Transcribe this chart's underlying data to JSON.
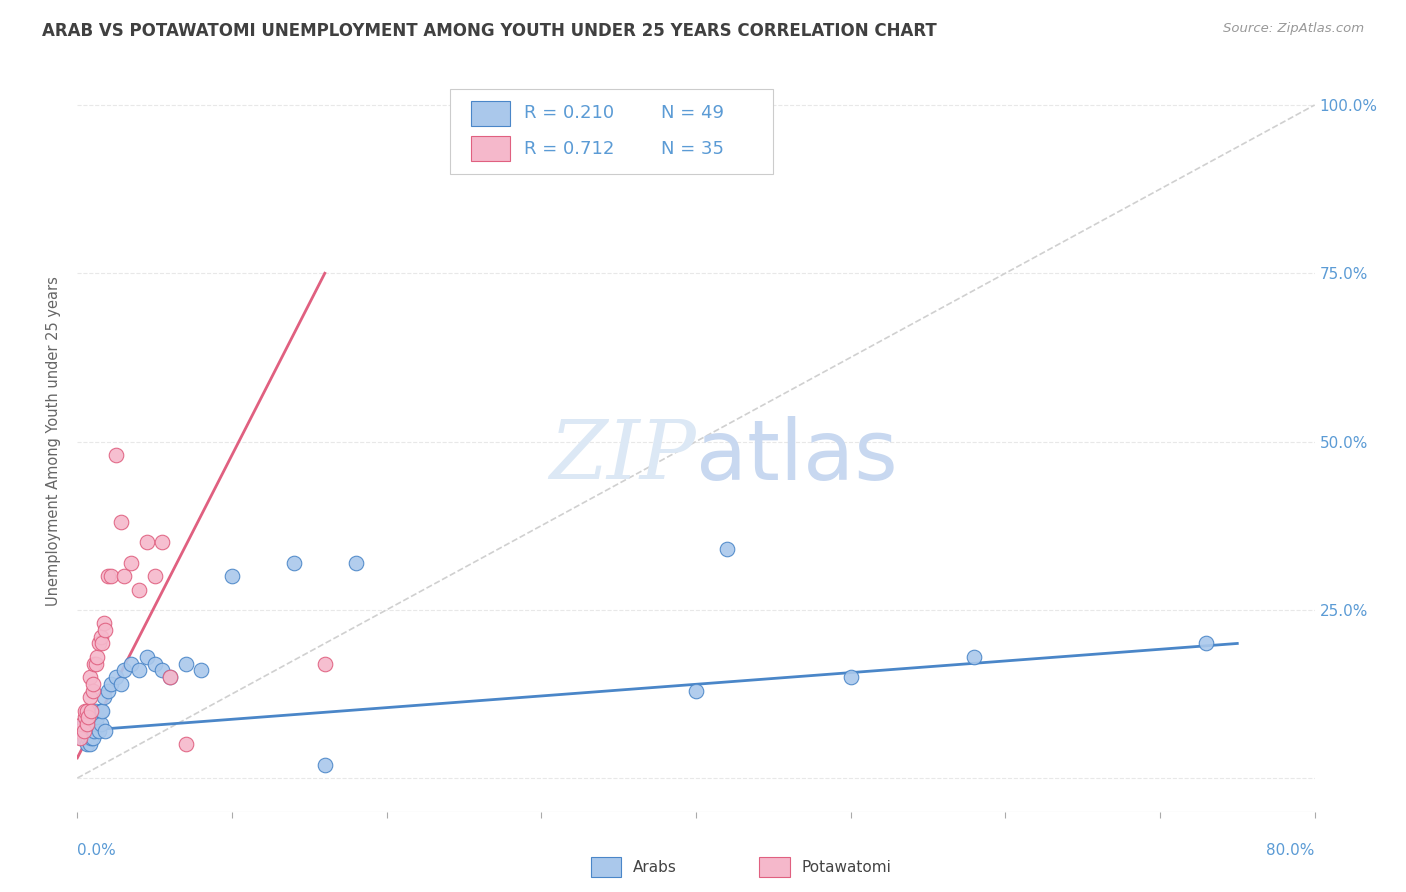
{
  "title": "ARAB VS POTAWATOMI UNEMPLOYMENT AMONG YOUTH UNDER 25 YEARS CORRELATION CHART",
  "source": "Source: ZipAtlas.com",
  "ylabel": "Unemployment Among Youth under 25 years",
  "arab_R": "0.210",
  "arab_N": "49",
  "potawatomi_R": "0.712",
  "potawatomi_N": "35",
  "arab_color": "#aac8eb",
  "potawatomi_color": "#f5b8cb",
  "arab_line_color": "#4a86c8",
  "potawatomi_line_color": "#e06080",
  "diagonal_color": "#d0d0d0",
  "background_color": "#ffffff",
  "grid_color": "#e8e8e8",
  "title_color": "#404040",
  "axis_label_color": "#5b9bd5",
  "watermark_color": "#dce8f5",
  "xlim": [
    0.0,
    0.8
  ],
  "ylim": [
    -0.05,
    1.05
  ],
  "yticks": [
    0.0,
    0.25,
    0.5,
    0.75,
    1.0
  ],
  "arab_x": [
    0.002,
    0.003,
    0.004,
    0.005,
    0.005,
    0.006,
    0.006,
    0.007,
    0.007,
    0.008,
    0.008,
    0.009,
    0.009,
    0.01,
    0.01,
    0.01,
    0.011,
    0.011,
    0.012,
    0.012,
    0.013,
    0.014,
    0.015,
    0.015,
    0.016,
    0.017,
    0.018,
    0.02,
    0.022,
    0.025,
    0.028,
    0.03,
    0.035,
    0.04,
    0.045,
    0.05,
    0.055,
    0.06,
    0.07,
    0.08,
    0.1,
    0.14,
    0.16,
    0.18,
    0.4,
    0.42,
    0.5,
    0.58,
    0.73
  ],
  "arab_y": [
    0.07,
    0.06,
    0.08,
    0.06,
    0.07,
    0.05,
    0.08,
    0.06,
    0.07,
    0.07,
    0.05,
    0.06,
    0.08,
    0.07,
    0.08,
    0.06,
    0.07,
    0.09,
    0.08,
    0.1,
    0.09,
    0.07,
    0.1,
    0.08,
    0.1,
    0.12,
    0.07,
    0.13,
    0.14,
    0.15,
    0.14,
    0.16,
    0.17,
    0.16,
    0.18,
    0.17,
    0.16,
    0.15,
    0.17,
    0.16,
    0.3,
    0.32,
    0.02,
    0.32,
    0.13,
    0.34,
    0.15,
    0.18,
    0.2
  ],
  "potawatomi_x": [
    0.001,
    0.002,
    0.003,
    0.004,
    0.005,
    0.005,
    0.006,
    0.006,
    0.007,
    0.008,
    0.008,
    0.009,
    0.01,
    0.01,
    0.011,
    0.012,
    0.013,
    0.014,
    0.015,
    0.016,
    0.017,
    0.018,
    0.02,
    0.022,
    0.025,
    0.028,
    0.03,
    0.035,
    0.04,
    0.045,
    0.05,
    0.055,
    0.06,
    0.07,
    0.16
  ],
  "potawatomi_y": [
    0.07,
    0.06,
    0.08,
    0.07,
    0.09,
    0.1,
    0.08,
    0.1,
    0.09,
    0.12,
    0.15,
    0.1,
    0.13,
    0.14,
    0.17,
    0.17,
    0.18,
    0.2,
    0.21,
    0.2,
    0.23,
    0.22,
    0.3,
    0.3,
    0.48,
    0.38,
    0.3,
    0.32,
    0.28,
    0.35,
    0.3,
    0.35,
    0.15,
    0.05,
    0.17
  ]
}
